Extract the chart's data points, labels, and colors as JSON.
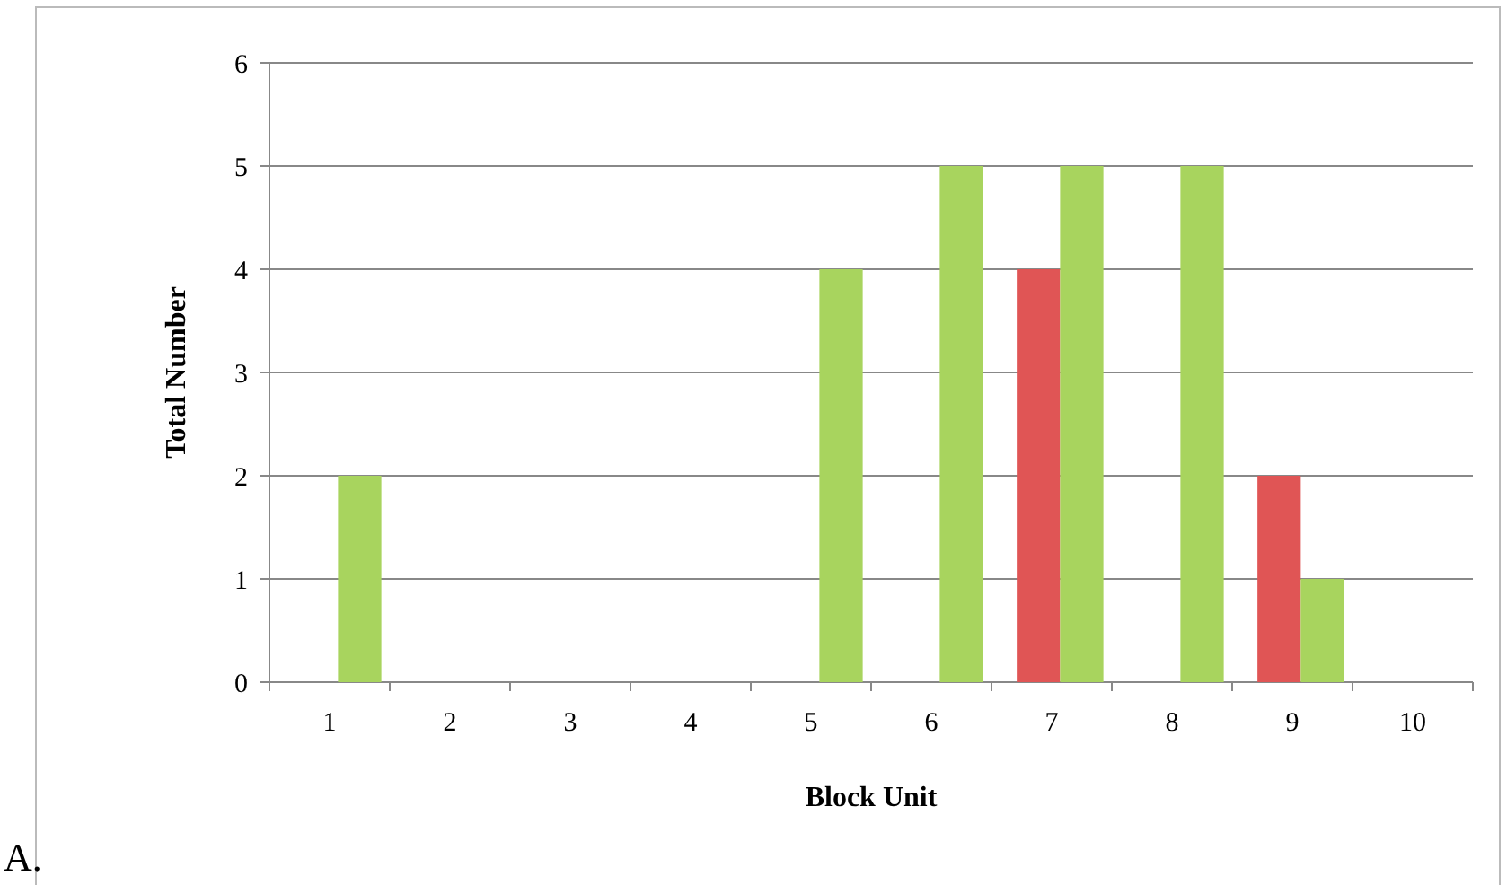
{
  "chart_data": {
    "type": "bar",
    "xlabel": "Block Unit",
    "ylabel": "Total Number",
    "categories": [
      "1",
      "2",
      "3",
      "4",
      "5",
      "6",
      "7",
      "8",
      "9",
      "10"
    ],
    "series": [
      {
        "color": "#e05555",
        "values": [
          0,
          0,
          0,
          0,
          0,
          0,
          4,
          0,
          2,
          0
        ]
      },
      {
        "color": "#a8d45e",
        "values": [
          2,
          0,
          0,
          0,
          4,
          5,
          5,
          5,
          1,
          0
        ]
      }
    ],
    "ylim": [
      0,
      6
    ],
    "yticks": [
      0,
      1,
      2,
      3,
      4,
      5,
      6
    ],
    "grid": "y",
    "annotations": [
      "A."
    ]
  }
}
